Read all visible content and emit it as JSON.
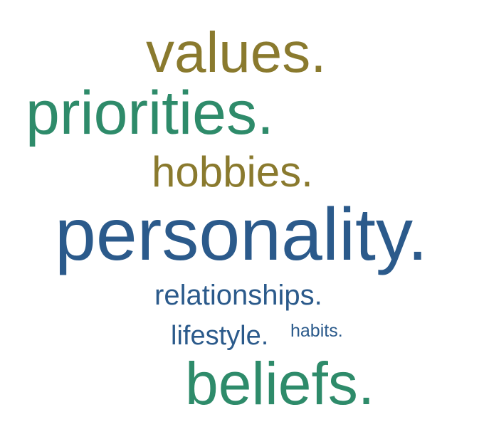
{
  "colors": {
    "olive": "#8a7a2e",
    "green": "#2e8b6a",
    "blue": "#2b5a8b",
    "background": "#ffffff"
  },
  "words": [
    {
      "id": "values",
      "text": "values.",
      "color": "#8a7a2e"
    },
    {
      "id": "priorities",
      "text": "priorities.",
      "color": "#2e8b6a"
    },
    {
      "id": "hobbies",
      "text": "hobbies.",
      "color": "#8a7a2e"
    },
    {
      "id": "personality",
      "text": "personality.",
      "color": "#2b5a8b"
    },
    {
      "id": "relationships",
      "text": "relationships.",
      "color": "#2b5a8b"
    },
    {
      "id": "lifestyle",
      "text": "lifestyle.",
      "color": "#2b5a8b"
    },
    {
      "id": "habits",
      "text": "habits.",
      "color": "#2b5a8b"
    },
    {
      "id": "beliefs",
      "text": "beliefs.",
      "color": "#2e8b6a"
    }
  ]
}
